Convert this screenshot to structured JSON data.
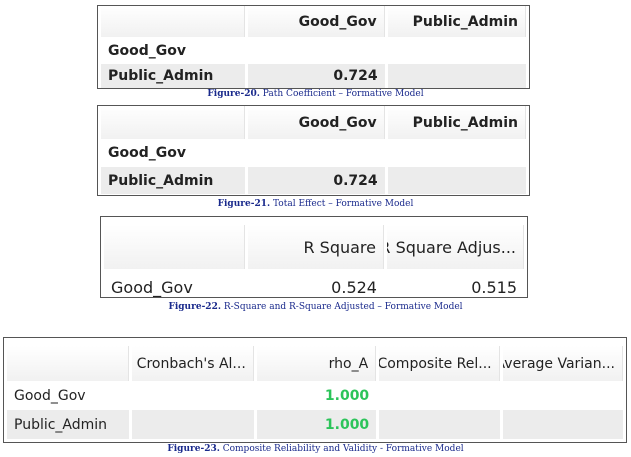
{
  "tables": [
    {
      "headers": [
        "",
        "Good_Gov",
        "Public_Admin"
      ],
      "rows": [
        [
          "Good_Gov",
          "",
          ""
        ],
        [
          "Public_Admin",
          "0.724",
          ""
        ]
      ],
      "caption_label": "Figure-20.",
      "caption": " Path Coefficient – Formative Model"
    },
    {
      "headers": [
        "",
        "Good_Gov",
        "Public_Admin"
      ],
      "rows": [
        [
          "Good_Gov",
          "",
          ""
        ],
        [
          "Public_Admin",
          "0.724",
          ""
        ]
      ],
      "caption_label": "Figure-21.",
      "caption": " Total Effect – Formative Model"
    },
    {
      "headers": [
        "",
        "R Square",
        "R Square Adjus..."
      ],
      "rows": [
        [
          "Good_Gov",
          "0.524",
          "0.515"
        ]
      ],
      "caption_label": "Figure-22.",
      "caption": " R-Square and R-Square Adjusted – Formative Model"
    },
    {
      "headers": [
        "",
        "Cronbach's Al...",
        "rho_A",
        "Composite Rel...",
        "Average Varian..."
      ],
      "rows": [
        [
          "Good_Gov",
          "",
          "1.000",
          "",
          ""
        ],
        [
          "Public_Admin",
          "",
          "1.000",
          "",
          ""
        ]
      ],
      "caption_label": "Figure-23.",
      "caption": " Composite Reliability and Validity - Formative Model"
    }
  ],
  "colors": {
    "highlight_green": "#2cc45a",
    "caption_blue": "#1a2a8c"
  }
}
